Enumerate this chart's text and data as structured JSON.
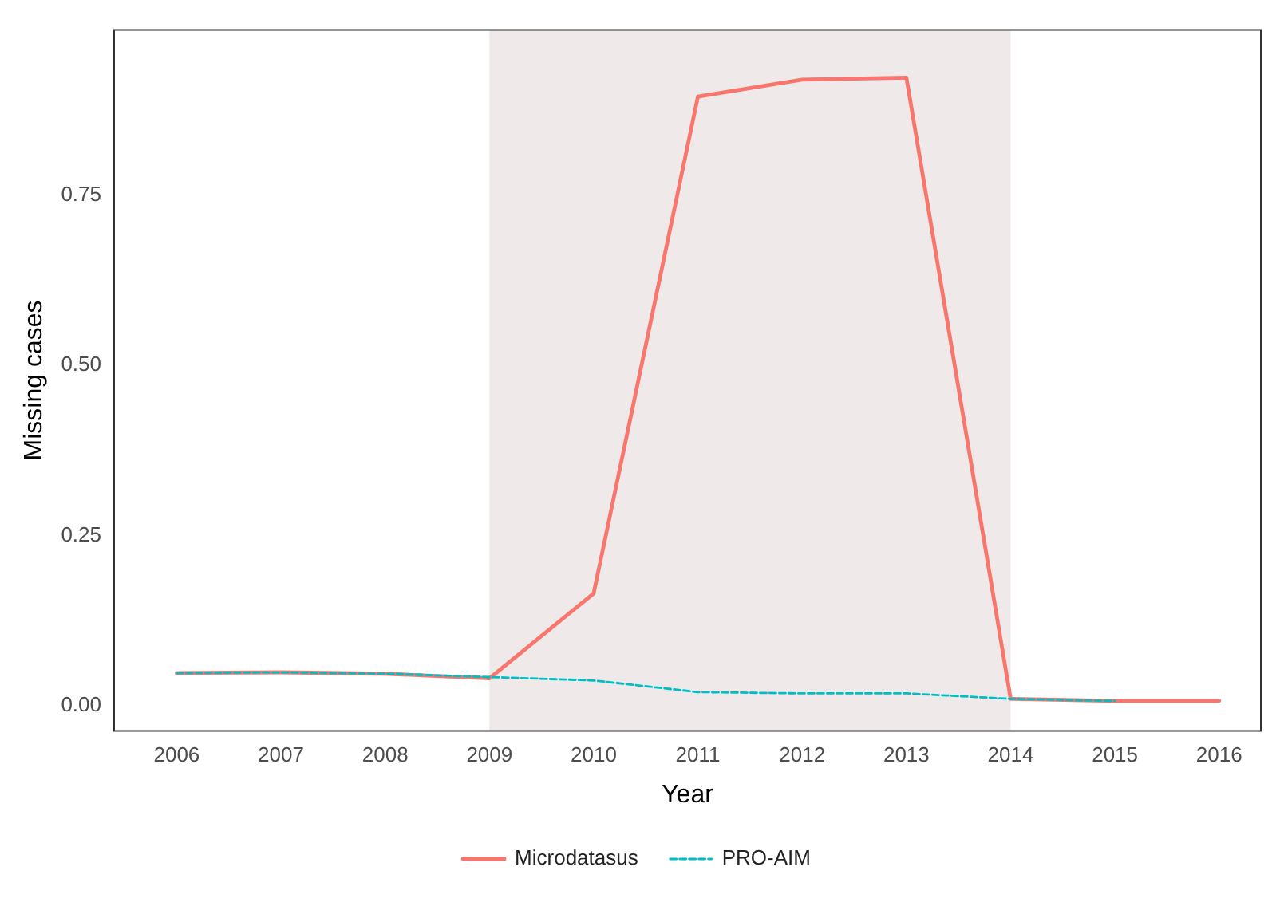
{
  "chart_data": {
    "type": "line",
    "xlabel": "Year",
    "ylabel": "Missing cases",
    "x": [
      2006,
      2007,
      2008,
      2009,
      2010,
      2011,
      2012,
      2013,
      2014,
      2015,
      2016
    ],
    "series": [
      {
        "name": "Microdatasus",
        "color": "#f8766d",
        "line_style": "solid",
        "values": [
          0.048,
          0.049,
          0.047,
          0.04,
          0.165,
          0.895,
          0.92,
          0.923,
          0.01,
          0.007,
          0.007
        ]
      },
      {
        "name": "PRO-AIM",
        "color": "#00bfc4",
        "line_style": "dashed",
        "values": [
          0.048,
          0.049,
          0.047,
          0.042,
          0.037,
          0.02,
          0.018,
          0.018,
          0.01,
          0.007,
          null
        ]
      }
    ],
    "xlim": [
      2005.4,
      2016.4
    ],
    "xticks": [
      2006,
      2007,
      2008,
      2009,
      2010,
      2011,
      2012,
      2013,
      2014,
      2015,
      2016
    ],
    "ylim": [
      -0.037,
      0.993
    ],
    "yticks": [
      {
        "value": 0,
        "label": "0.00"
      },
      {
        "value": 0.25,
        "label": "0.25"
      },
      {
        "value": 0.5,
        "label": "0.50"
      },
      {
        "value": 0.75,
        "label": "0.75"
      }
    ],
    "bands": [
      {
        "axis": "x",
        "from": 2009,
        "to": 2014,
        "color": "#efe9e9"
      }
    ],
    "grid": false,
    "legend": "bottom",
    "marker": "none"
  }
}
